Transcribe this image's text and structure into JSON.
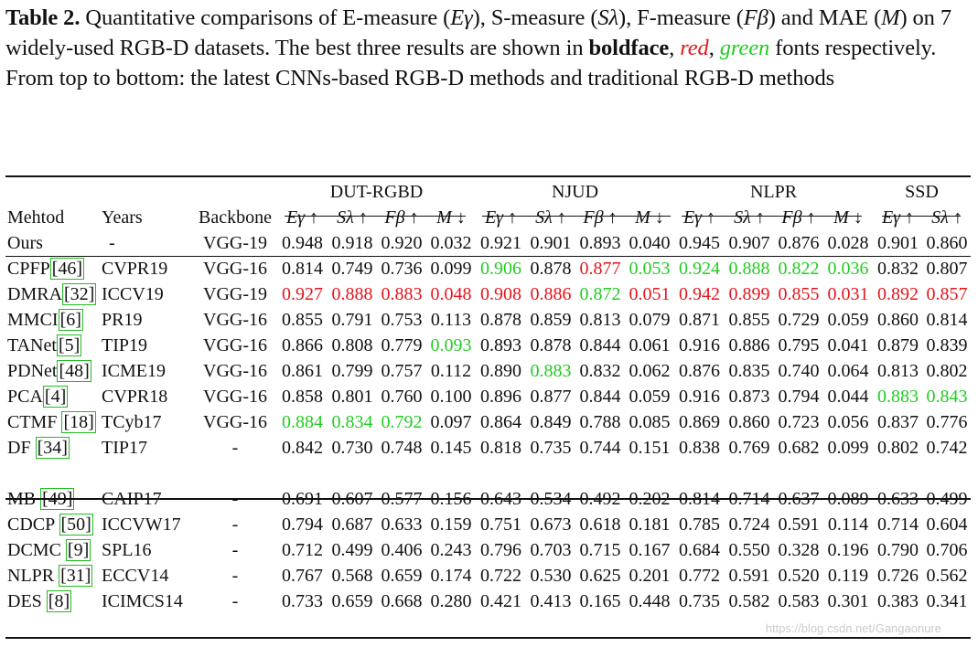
{
  "caption": {
    "label": "Table 2.",
    "part1": " Quantitative comparisons of E-measure (",
    "e_sym": "Eγ",
    "part2": "), S-measure (",
    "s_sym": "Sλ",
    "part3": "), F-measure (",
    "f_sym": "Fβ",
    "part4": ") and MAE (",
    "m_sym": "M",
    "part5": ") on 7 widely-used RGB-D datasets. The best three results are shown in ",
    "bold_word": "boldface",
    "comma1": ", ",
    "red_word": "red",
    "comma2": ", ",
    "green_word": "green",
    "part6": " fonts respectively. From top to bottom: the latest CNNs-based RGB-D methods and traditional RGB-D methods"
  },
  "header": {
    "method": "Mehtod",
    "years": "Years",
    "backbone": "Backbone",
    "groups": [
      "DUT-RGBD",
      "NJUD",
      "NLPR",
      "SSD"
    ],
    "metrics": [
      "Eγ ↑",
      "Sλ ↑",
      "Fβ ↑",
      "M ↓",
      "Eγ ↑",
      "Sλ ↑",
      "Fβ ↑",
      "M ↓",
      "Eγ ↑",
      "Sλ ↑",
      "Fβ ↑",
      "M ↓",
      "Eγ ↑",
      "Sλ ↑"
    ]
  },
  "rows_cnn": [
    {
      "name": "Ours",
      "ref": "",
      "year": "-",
      "backbone": "VGG-19",
      "values": [
        "0.948",
        "0.918",
        "0.920",
        "0.032",
        "0.921",
        "0.901",
        "0.893",
        "0.040",
        "0.945",
        "0.907",
        "0.876",
        "0.028",
        "0.901",
        "0.860"
      ],
      "colors": [
        "b",
        "b",
        "b",
        "b",
        "b",
        "b",
        "b",
        "b",
        "b",
        "b",
        "b",
        "b",
        "b",
        "b"
      ]
    },
    {
      "name": "CPFP",
      "ref": "[46]",
      "year": "CVPR19",
      "backbone": "VGG-16",
      "values": [
        "0.814",
        "0.749",
        "0.736",
        "0.099",
        "0.906",
        "0.878",
        "0.877",
        "0.053",
        "0.924",
        "0.888",
        "0.822",
        "0.036",
        "0.832",
        "0.807"
      ],
      "colors": [
        "",
        "",
        "",
        "",
        "g",
        "",
        "r",
        "g",
        "g",
        "g",
        "g",
        "g",
        "",
        ""
      ]
    },
    {
      "name": "DMRA",
      "ref": "[32]",
      "year": "ICCV19",
      "backbone": "VGG-19",
      "values": [
        "0.927",
        "0.888",
        "0.883",
        "0.048",
        "0.908",
        "0.886",
        "0.872",
        "0.051",
        "0.942",
        "0.899",
        "0.855",
        "0.031",
        "0.892",
        "0.857"
      ],
      "colors": [
        "r",
        "r",
        "r",
        "r",
        "r",
        "r",
        "g",
        "r",
        "r",
        "r",
        "r",
        "r",
        "r",
        "r"
      ]
    },
    {
      "name": "MMCI",
      "ref": "[6]",
      "year": "PR19",
      "backbone": "VGG-16",
      "values": [
        "0.855",
        "0.791",
        "0.753",
        "0.113",
        "0.878",
        "0.859",
        "0.813",
        "0.079",
        "0.871",
        "0.855",
        "0.729",
        "0.059",
        "0.860",
        "0.814"
      ],
      "colors": [
        "",
        "",
        "",
        "",
        "",
        "",
        "",
        "",
        "",
        "",
        "",
        "",
        "",
        ""
      ]
    },
    {
      "name": "TANet",
      "ref": "[5]",
      "year": "TIP19",
      "backbone": "VGG-16",
      "values": [
        "0.866",
        "0.808",
        "0.779",
        "0.093",
        "0.893",
        "0.878",
        "0.844",
        "0.061",
        "0.916",
        "0.886",
        "0.795",
        "0.041",
        "0.879",
        "0.839"
      ],
      "colors": [
        "",
        "",
        "",
        "g",
        "",
        "",
        "",
        "",
        "",
        "",
        "",
        "",
        "",
        ""
      ]
    },
    {
      "name": "PDNet",
      "ref": "[48]",
      "year": "ICME19",
      "backbone": "VGG-16",
      "values": [
        "0.861",
        "0.799",
        "0.757",
        "0.112",
        "0.890",
        "0.883",
        "0.832",
        "0.062",
        "0.876",
        "0.835",
        "0.740",
        "0.064",
        "0.813",
        "0.802"
      ],
      "colors": [
        "",
        "",
        "",
        "",
        "",
        "g",
        "",
        "",
        "",
        "",
        "",
        "",
        "",
        ""
      ]
    },
    {
      "name": "PCA",
      "ref": "[4]",
      "year": "CVPR18",
      "backbone": "VGG-16",
      "values": [
        "0.858",
        "0.801",
        "0.760",
        "0.100",
        "0.896",
        "0.877",
        "0.844",
        "0.059",
        "0.916",
        "0.873",
        "0.794",
        "0.044",
        "0.883",
        "0.843"
      ],
      "colors": [
        "",
        "",
        "",
        "",
        "",
        "",
        "",
        "",
        "",
        "",
        "",
        "",
        "g",
        "g"
      ]
    },
    {
      "name": "CTMF",
      "ref": "[18]",
      "year": "TCyb17",
      "backbone": "VGG-16",
      "values": [
        "0.884",
        "0.834",
        "0.792",
        "0.097",
        "0.864",
        "0.849",
        "0.788",
        "0.085",
        "0.869",
        "0.860",
        "0.723",
        "0.056",
        "0.837",
        "0.776"
      ],
      "colors": [
        "g",
        "g",
        "g",
        "",
        "",
        "",
        "",
        "",
        "",
        "",
        "",
        "",
        "",
        ""
      ]
    },
    {
      "name": "DF",
      "ref": "[34]",
      "year": "TIP17",
      "backbone": "-",
      "values": [
        "0.842",
        "0.730",
        "0.748",
        "0.145",
        "0.818",
        "0.735",
        "0.744",
        "0.151",
        "0.838",
        "0.769",
        "0.682",
        "0.099",
        "0.802",
        "0.742"
      ],
      "colors": [
        "",
        "",
        "",
        "",
        "",
        "",
        "",
        "",
        "",
        "",
        "",
        "",
        "",
        ""
      ]
    }
  ],
  "rows_trad": [
    {
      "name": "MB",
      "ref": "[49]",
      "year": "CAIP17",
      "backbone": "-",
      "values": [
        "0.691",
        "0.607",
        "0.577",
        "0.156",
        "0.643",
        "0.534",
        "0.492",
        "0.202",
        "0.814",
        "0.714",
        "0.637",
        "0.089",
        "0.633",
        "0.499"
      ],
      "colors": [
        "",
        "",
        "",
        "",
        "",
        "",
        "",
        "",
        "",
        "",
        "",
        "",
        "",
        ""
      ]
    },
    {
      "name": "CDCP",
      "ref": "[50]",
      "year": "ICCVW17",
      "backbone": "-",
      "values": [
        "0.794",
        "0.687",
        "0.633",
        "0.159",
        "0.751",
        "0.673",
        "0.618",
        "0.181",
        "0.785",
        "0.724",
        "0.591",
        "0.114",
        "0.714",
        "0.604"
      ],
      "colors": [
        "",
        "",
        "",
        "",
        "",
        "",
        "",
        "",
        "",
        "",
        "",
        "",
        "",
        ""
      ]
    },
    {
      "name": "DCMC",
      "ref": "[9]",
      "year": "SPL16",
      "backbone": "-",
      "values": [
        "0.712",
        "0.499",
        "0.406",
        "0.243",
        "0.796",
        "0.703",
        "0.715",
        "0.167",
        "0.684",
        "0.550",
        "0.328",
        "0.196",
        "0.790",
        "0.706"
      ],
      "colors": [
        "",
        "",
        "",
        "",
        "",
        "",
        "",
        "",
        "",
        "",
        "",
        "",
        "",
        ""
      ]
    },
    {
      "name": "NLPR",
      "ref": "[31]",
      "year": "ECCV14",
      "backbone": "-",
      "values": [
        "0.767",
        "0.568",
        "0.659",
        "0.174",
        "0.722",
        "0.530",
        "0.625",
        "0.201",
        "0.772",
        "0.591",
        "0.520",
        "0.119",
        "0.726",
        "0.562"
      ],
      "colors": [
        "",
        "",
        "",
        "",
        "",
        "",
        "",
        "",
        "",
        "",
        "",
        "",
        "",
        ""
      ]
    },
    {
      "name": "DES",
      "ref": "[8]",
      "year": "ICIMCS14",
      "backbone": "-",
      "values": [
        "0.733",
        "0.659",
        "0.668",
        "0.280",
        "0.421",
        "0.413",
        "0.165",
        "0.448",
        "0.735",
        "0.582",
        "0.583",
        "0.301",
        "0.383",
        "0.341"
      ],
      "colors": [
        "",
        "",
        "",
        "",
        "",
        "",
        "",
        "",
        "",
        "",
        "",
        "",
        "",
        ""
      ]
    }
  ],
  "watermark": "https://blog.csdn.net/Gangaonure",
  "colors": {
    "red": "#e5141b",
    "green": "#22cc22"
  }
}
